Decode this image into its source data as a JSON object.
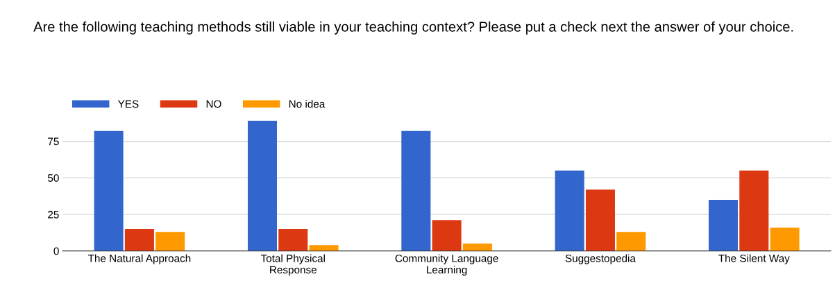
{
  "chart_data": {
    "type": "bar",
    "title": "Are the following teaching methods still viable in your teaching context? Please put a check next the answer of your choice.",
    "categories": [
      "The Natural Approach",
      "Total Physical\nResponse",
      "Community Language\nLearning",
      "Suggestopedia",
      "The Silent Way"
    ],
    "series": [
      {
        "name": "YES",
        "color": "#3366cc",
        "values": [
          82,
          89,
          82,
          55,
          35
        ]
      },
      {
        "name": "NO",
        "color": "#dc3912",
        "values": [
          15,
          15,
          21,
          42,
          55
        ]
      },
      {
        "name": "No idea",
        "color": "#ff9900",
        "values": [
          13,
          4,
          5,
          13,
          16
        ]
      }
    ],
    "ylim": [
      0,
      90
    ],
    "yticks": [
      0,
      25,
      50,
      75
    ],
    "grid": "y",
    "legend": "top left"
  }
}
